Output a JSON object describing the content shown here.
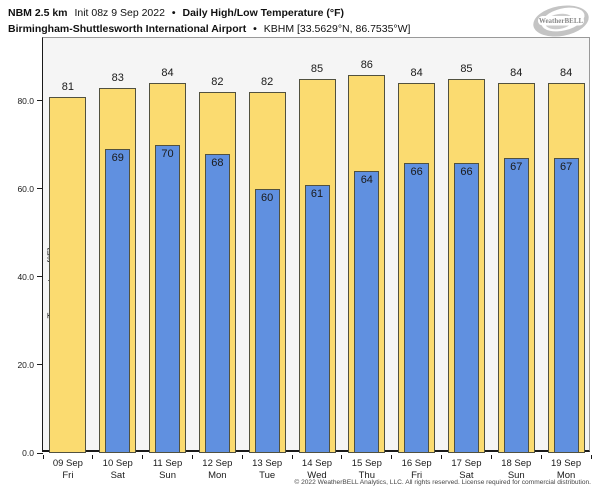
{
  "header": {
    "line1": {
      "model": "NBM 2.5 km",
      "init": "Init 08z 9 Sep 2022",
      "bullet": "•",
      "product": "Daily High/Low Temperature (°F)"
    },
    "line2": {
      "station": "Birmingham-Shuttlesworth International Airport",
      "bullet": "•",
      "id_coords": "KBHM [33.5629°N, 86.7535°W]"
    }
  },
  "logo": {
    "brand": "WeatherBELL"
  },
  "chart_data": {
    "type": "bar",
    "title": "Daily High/Low Temperature (°F)",
    "subtitle": "Birmingham-Shuttlesworth International Airport",
    "categories": [
      "09 Sep",
      "10 Sep",
      "11 Sep",
      "12 Sep",
      "13 Sep",
      "14 Sep",
      "15 Sep",
      "16 Sep",
      "17 Sep",
      "18 Sep",
      "19 Sep"
    ],
    "weekdays": [
      "Fri",
      "Sat",
      "Sun",
      "Mon",
      "Tue",
      "Wed",
      "Thu",
      "Fri",
      "Sat",
      "Sun",
      "Mon"
    ],
    "series": [
      {
        "name": "Daily High",
        "color": "#FBDB70",
        "values": [
          81,
          83,
          84,
          82,
          82,
          85,
          86,
          84,
          85,
          84,
          84
        ]
      },
      {
        "name": "Daily Low",
        "color": "#6090E0",
        "values": [
          null,
          69,
          70,
          68,
          60,
          61,
          64,
          66,
          66,
          67,
          67
        ]
      }
    ],
    "ylabel": "Temperature [°F]",
    "yticks": [
      0,
      20,
      40,
      60,
      80
    ],
    "ytick_labels": [
      "0.0",
      "20.0",
      "40.0",
      "60.0",
      "80.0"
    ],
    "ylim": [
      0,
      94.3
    ],
    "grid": false,
    "legend": "none",
    "plot_bg": "#f5f5f5",
    "bar_border": "#51513f"
  },
  "footer": {
    "copyright": "© 2022 WeatherBELL Analytics, LLC. All rights reserved. License required for commercial distribution."
  }
}
